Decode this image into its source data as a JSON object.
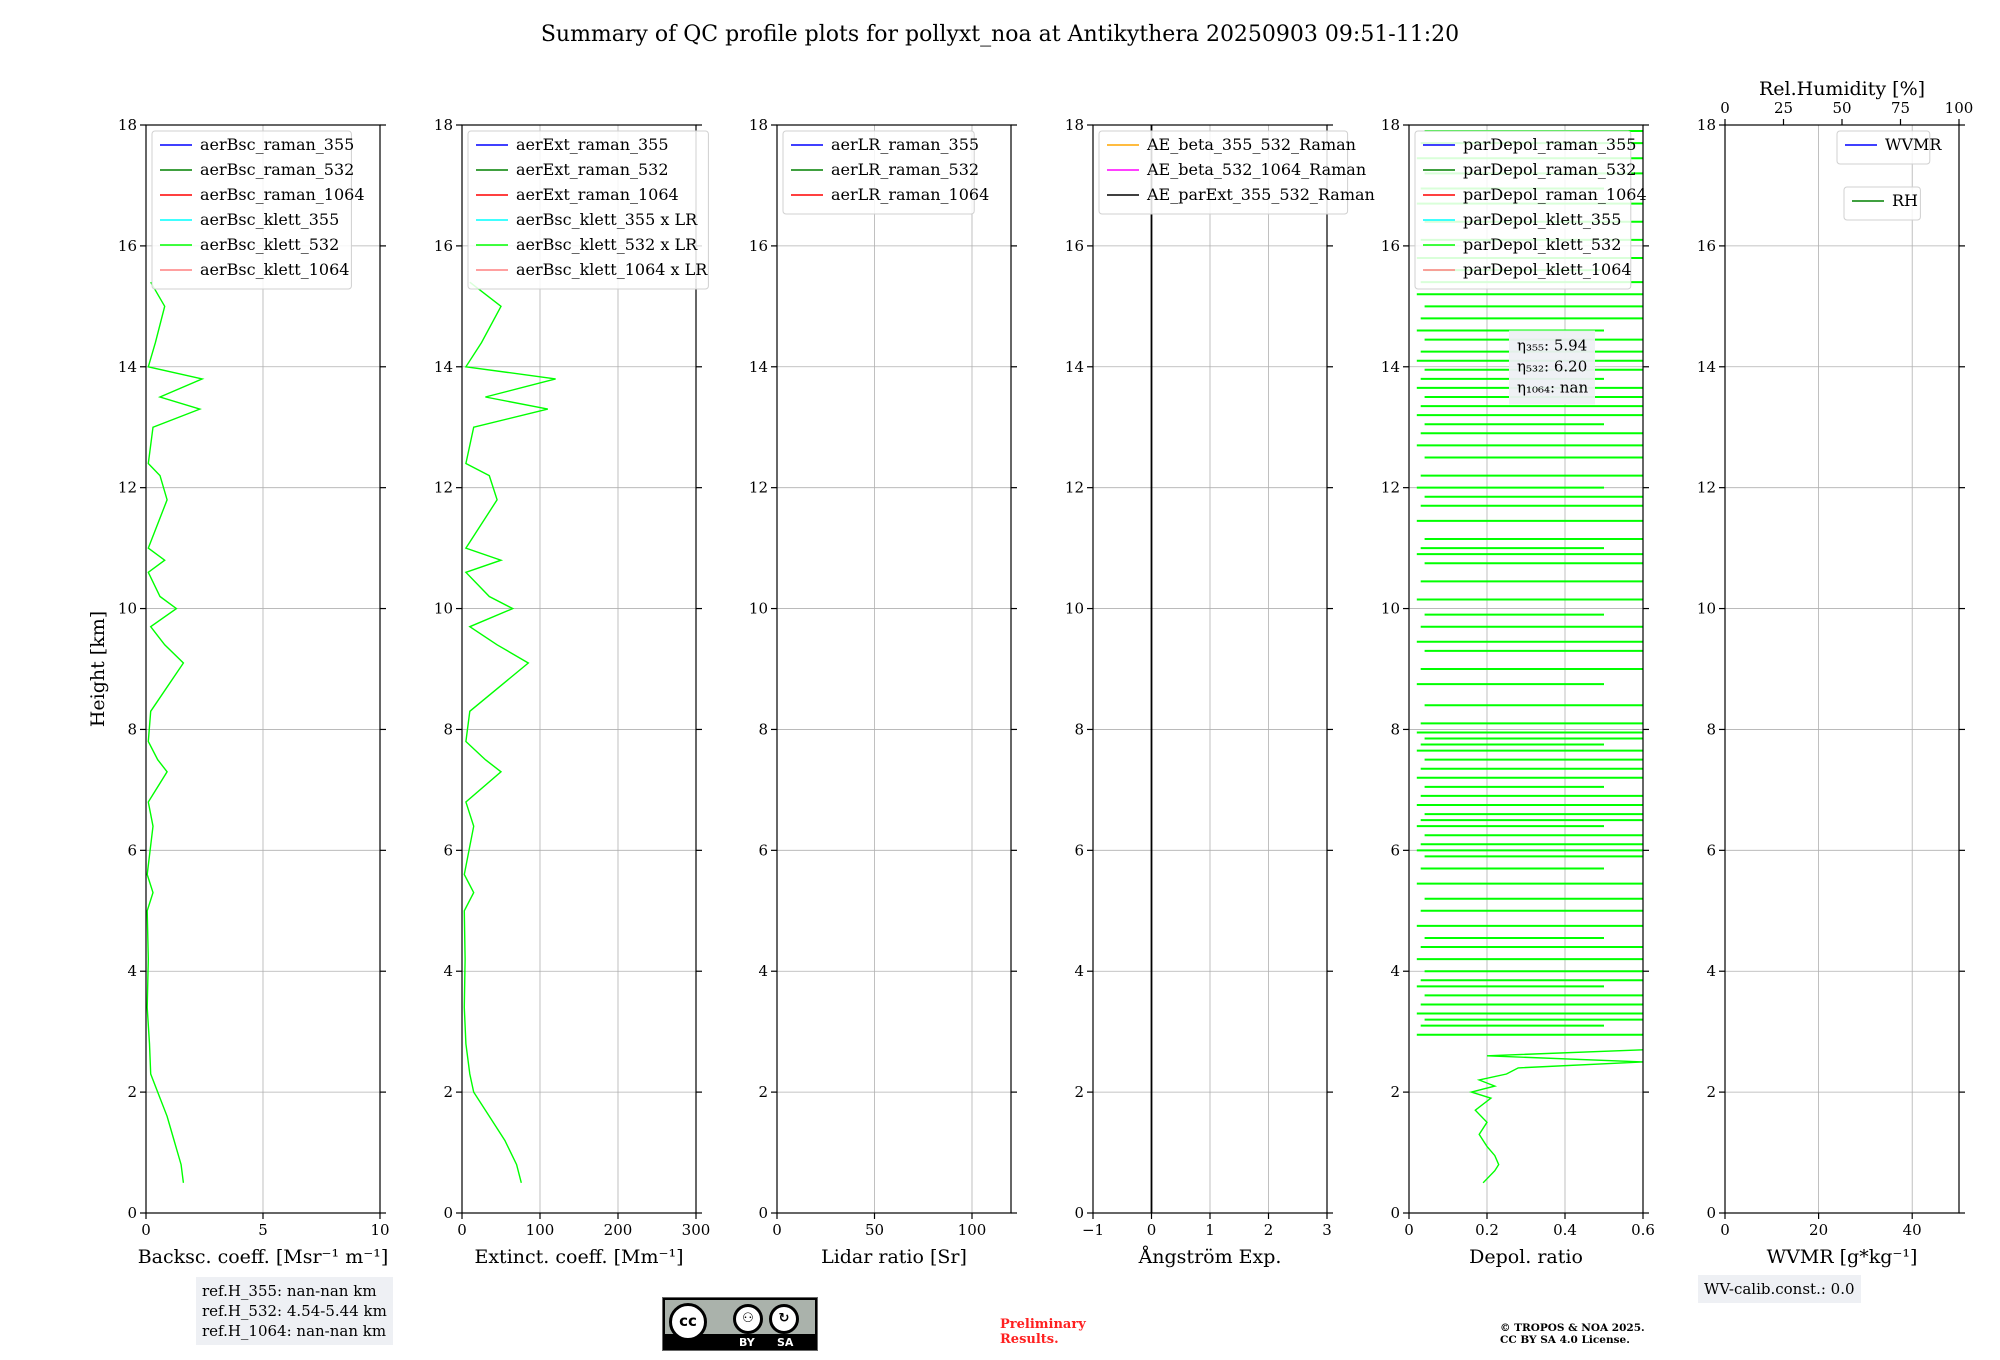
{
  "title": "Summary of QC profile plots for pollyxt_noa at Antikythera 20250903 09:51-11:20",
  "chart_data": {
    "y_axis": {
      "label": "Height [km]",
      "lim": [
        0,
        18
      ],
      "ticks": [
        0,
        2,
        4,
        6,
        8,
        10,
        12,
        14,
        16,
        18
      ]
    },
    "panels": [
      {
        "id": "bsc",
        "type": "line",
        "xlabel": "Backsc. coeff. [Msr⁻¹ m⁻¹]",
        "xlim": [
          0,
          10
        ],
        "xticks": [
          0,
          5,
          10
        ],
        "legend": [
          {
            "label": "aerBsc_raman_355",
            "color": "#0000ff"
          },
          {
            "label": "aerBsc_raman_532",
            "color": "#008000"
          },
          {
            "label": "aerBsc_raman_1064",
            "color": "#ff0000"
          },
          {
            "label": "aerBsc_klett_355",
            "color": "#00ffff"
          },
          {
            "label": "aerBsc_klett_532",
            "color": "#00ff00"
          },
          {
            "label": "aerBsc_klett_1064",
            "color": "#ff8080"
          }
        ],
        "series": [
          {
            "name": "aerBsc_klett_532",
            "color": "#00ff00",
            "points": [
              [
                1.6,
                0.5
              ],
              [
                1.5,
                0.8
              ],
              [
                1.2,
                1.2
              ],
              [
                0.9,
                1.6
              ],
              [
                0.5,
                2.0
              ],
              [
                0.2,
                2.3
              ],
              [
                0.15,
                2.8
              ],
              [
                0.05,
                3.4
              ],
              [
                0.1,
                4.2
              ],
              [
                0.05,
                5.0
              ],
              [
                0.3,
                5.3
              ],
              [
                0.05,
                5.6
              ],
              [
                0.3,
                6.4
              ],
              [
                0.1,
                6.8
              ],
              [
                0.9,
                7.3
              ],
              [
                0.5,
                7.5
              ],
              [
                0.1,
                7.8
              ],
              [
                0.2,
                8.3
              ],
              [
                1.6,
                9.1
              ],
              [
                0.8,
                9.4
              ],
              [
                0.2,
                9.7
              ],
              [
                1.3,
                10.0
              ],
              [
                0.6,
                10.2
              ],
              [
                0.1,
                10.6
              ],
              [
                0.8,
                10.8
              ],
              [
                0.1,
                11.0
              ],
              [
                0.9,
                11.8
              ],
              [
                0.6,
                12.2
              ],
              [
                0.1,
                12.4
              ],
              [
                0.3,
                13.0
              ],
              [
                2.3,
                13.3
              ],
              [
                0.6,
                13.5
              ],
              [
                2.4,
                13.8
              ],
              [
                0.1,
                14.0
              ],
              [
                0.4,
                14.4
              ],
              [
                0.8,
                15.0
              ],
              [
                0.2,
                15.4
              ]
            ]
          }
        ]
      },
      {
        "id": "ext",
        "type": "line",
        "xlabel": "Extinct. coeff. [Mm⁻¹]",
        "xlim": [
          0,
          300
        ],
        "xticks": [
          0,
          100,
          200,
          300
        ],
        "legend": [
          {
            "label": "aerExt_raman_355",
            "color": "#0000ff"
          },
          {
            "label": "aerExt_raman_532",
            "color": "#008000"
          },
          {
            "label": "aerExt_raman_1064",
            "color": "#ff0000"
          },
          {
            "label": "aerBsc_klett_355 x LR",
            "color": "#00ffff"
          },
          {
            "label": "aerBsc_klett_532 x LR",
            "color": "#00ff00"
          },
          {
            "label": "aerBsc_klett_1064 x LR",
            "color": "#ff8080"
          }
        ],
        "series": [
          {
            "name": "aerBsc_klett_532 x LR",
            "color": "#00ff00",
            "points": [
              [
                76,
                0.5
              ],
              [
                70,
                0.8
              ],
              [
                55,
                1.2
              ],
              [
                35,
                1.6
              ],
              [
                15,
                2.0
              ],
              [
                10,
                2.3
              ],
              [
                5,
                2.8
              ],
              [
                3,
                3.4
              ],
              [
                4,
                4.2
              ],
              [
                3,
                5.0
              ],
              [
                15,
                5.3
              ],
              [
                3,
                5.6
              ],
              [
                15,
                6.4
              ],
              [
                5,
                6.8
              ],
              [
                50,
                7.3
              ],
              [
                30,
                7.5
              ],
              [
                5,
                7.8
              ],
              [
                10,
                8.3
              ],
              [
                85,
                9.1
              ],
              [
                45,
                9.4
              ],
              [
                10,
                9.7
              ],
              [
                65,
                10.0
              ],
              [
                35,
                10.2
              ],
              [
                5,
                10.6
              ],
              [
                50,
                10.8
              ],
              [
                5,
                11.0
              ],
              [
                45,
                11.8
              ],
              [
                35,
                12.2
              ],
              [
                5,
                12.4
              ],
              [
                15,
                13.0
              ],
              [
                110,
                13.3
              ],
              [
                30,
                13.5
              ],
              [
                120,
                13.8
              ],
              [
                5,
                14.0
              ],
              [
                25,
                14.4
              ],
              [
                50,
                15.0
              ],
              [
                10,
                15.4
              ]
            ]
          }
        ]
      },
      {
        "id": "lr",
        "type": "line",
        "xlabel": "Lidar ratio [Sr]",
        "xlim": [
          0,
          120
        ],
        "xticks": [
          0,
          50,
          100
        ],
        "legend": [
          {
            "label": "aerLR_raman_355",
            "color": "#0000ff"
          },
          {
            "label": "aerLR_raman_532",
            "color": "#008000"
          },
          {
            "label": "aerLR_raman_1064",
            "color": "#ff0000"
          }
        ],
        "series": []
      },
      {
        "id": "ae",
        "type": "line",
        "xlabel": "Ångström Exp.",
        "xlim": [
          -1,
          3
        ],
        "xticks": [
          -1,
          0,
          1,
          2,
          3
        ],
        "legend": [
          {
            "label": "AE_beta_355_532_Raman",
            "color": "#ffa500"
          },
          {
            "label": "AE_beta_532_1064_Raman",
            "color": "#ff00ff"
          },
          {
            "label": "AE_parExt_355_532_Raman",
            "color": "#000000"
          }
        ],
        "series": [
          {
            "name": "zero-line",
            "color": "#000000",
            "points": [
              [
                0,
                0
              ],
              [
                0,
                18
              ]
            ]
          }
        ]
      },
      {
        "id": "depol",
        "type": "line",
        "xlabel": "Depol. ratio",
        "xlim": [
          0,
          0.6
        ],
        "xticks": [
          0.0,
          0.2,
          0.4,
          0.6
        ],
        "legend": [
          {
            "label": "parDepol_raman_355",
            "color": "#0000ff"
          },
          {
            "label": "parDepol_raman_532",
            "color": "#008000"
          },
          {
            "label": "parDepol_raman_1064",
            "color": "#ff0000"
          },
          {
            "label": "parDepol_klett_355",
            "color": "#00ffff"
          },
          {
            "label": "parDepol_klett_532",
            "color": "#00ff00"
          },
          {
            "label": "parDepol_klett_1064",
            "color": "#ff8080"
          }
        ],
        "annotation": [
          "η₃₅₅: 5.94",
          "η₅₃₂: 6.20",
          "η₁₀₆₄: nan"
        ],
        "series": [
          {
            "name": "parDepol_klett_532",
            "color": "#00ff00",
            "points": [
              [
                0.19,
                0.5
              ],
              [
                0.22,
                0.7
              ],
              [
                0.23,
                0.8
              ],
              [
                0.22,
                0.95
              ],
              [
                0.2,
                1.1
              ],
              [
                0.18,
                1.3
              ],
              [
                0.2,
                1.5
              ],
              [
                0.17,
                1.7
              ],
              [
                0.21,
                1.9
              ],
              [
                0.16,
                2.0
              ],
              [
                0.22,
                2.1
              ],
              [
                0.18,
                2.2
              ],
              [
                0.25,
                2.3
              ],
              [
                0.28,
                2.4
              ],
              [
                0.6,
                2.5
              ],
              [
                0.2,
                2.6
              ],
              [
                0.6,
                2.7
              ]
            ]
          },
          {
            "name": "parDepol_klett_532_noisy",
            "color": "#00ff00",
            "hlines": [
              2.95,
              3.1,
              3.2,
              3.3,
              3.45,
              3.6,
              3.75,
              3.85,
              4.0,
              4.2,
              4.4,
              4.55,
              4.75,
              5.0,
              5.2,
              5.45,
              5.7,
              5.9,
              6.0,
              6.1,
              6.25,
              6.4,
              6.5,
              6.6,
              6.75,
              6.9,
              7.05,
              7.2,
              7.35,
              7.5,
              7.65,
              7.75,
              7.85,
              7.95,
              8.1,
              8.4,
              8.75,
              9.0,
              9.3,
              9.45,
              9.7,
              9.9,
              10.15,
              10.45,
              10.75,
              10.9,
              11.0,
              11.15,
              11.45,
              11.7,
              11.85,
              12.0,
              12.2,
              12.5,
              12.7,
              12.9,
              13.05,
              13.2,
              13.35,
              13.5,
              13.65,
              13.8,
              13.95,
              14.1,
              14.25,
              14.45,
              14.6,
              14.8,
              15.0,
              15.2,
              15.4,
              15.6,
              15.8,
              16.1,
              16.4,
              16.7,
              16.95,
              17.2,
              17.45,
              17.7,
              17.9
            ]
          }
        ]
      },
      {
        "id": "wv",
        "type": "line",
        "xlabel": "WVMR [g*kg⁻¹]",
        "xlim": [
          0,
          50
        ],
        "xticks": [
          0,
          20,
          40
        ],
        "top_axis": {
          "label": "Rel.Humidity [%]",
          "lim": [
            0,
            100
          ],
          "ticks": [
            0,
            25,
            50,
            75,
            100
          ]
        },
        "legend": [
          {
            "label": "WVMR",
            "color": "#0000ff"
          }
        ],
        "legend2": [
          {
            "label": "RH",
            "color": "#008000"
          }
        ],
        "series": []
      }
    ]
  },
  "notes": {
    "ref_heights": [
      "ref.H_355: nan-nan km",
      "ref.H_532: 4.54-5.44 km",
      "ref.H_1064: nan-nan km"
    ],
    "wv_calib": "WV-calib.const.: 0.0",
    "preliminary": [
      "Preliminary",
      "Results."
    ],
    "copyright": [
      "© TROPOS & NOA 2025.",
      "CC BY SA 4.0 License."
    ],
    "license_badge": {
      "cc": "cc",
      "by": "BY",
      "sa": "SA"
    }
  }
}
